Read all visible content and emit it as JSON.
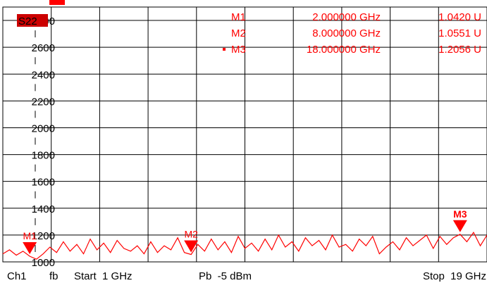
{
  "trace_label": "S22",
  "colors": {
    "trace": "#ff0000",
    "grid": "#000000",
    "text": "#000000",
    "background": "#ffffff"
  },
  "markers": [
    {
      "name": "M1",
      "freq": "2.000000 GHz",
      "value": "1.0420 U",
      "active": false
    },
    {
      "name": "M2",
      "freq": "8.000000 GHz",
      "value": "1.0551 U",
      "active": false
    },
    {
      "name": "M3",
      "freq": "18.000000 GHz",
      "value": "1.2056 U",
      "active": true
    }
  ],
  "status_bar": {
    "channel": "Ch1",
    "mode": "fb",
    "start": "Start  1 GHz",
    "power": "Pb  -5 dBm",
    "stop": "Stop  19 GHz"
  },
  "chart_data": {
    "type": "line",
    "ylim": [
      1000,
      2900
    ],
    "xlim": [
      1,
      19
    ],
    "y_ticks": [
      1000,
      1200,
      1400,
      1600,
      1800,
      2000,
      2200,
      2400,
      2600,
      2800
    ],
    "y_tick_labels": [
      "1000",
      "1200",
      "1400",
      "1600",
      "1800",
      "2000",
      "2200",
      "2400",
      "2600",
      "2800"
    ],
    "grid": true,
    "series": [
      {
        "x": [
          1,
          1.25,
          1.5,
          1.75,
          2,
          2.25,
          2.5,
          2.75,
          3,
          3.25,
          3.5,
          3.75,
          4,
          4.25,
          4.5,
          4.75,
          5,
          5.25,
          5.5,
          5.75,
          6,
          6.25,
          6.5,
          6.75,
          7,
          7.25,
          7.5,
          7.75,
          8,
          8.25,
          8.5,
          8.75,
          9,
          9.25,
          9.5,
          9.75,
          10,
          10.25,
          10.5,
          10.75,
          11,
          11.25,
          11.5,
          11.75,
          12,
          12.25,
          12.5,
          12.75,
          13,
          13.25,
          13.5,
          13.75,
          14,
          14.25,
          14.5,
          14.75,
          15,
          15.25,
          15.5,
          15.75,
          16,
          16.25,
          16.5,
          16.75,
          17,
          17.25,
          17.5,
          17.75,
          18,
          18.25,
          18.5,
          18.75,
          19
        ],
        "y": [
          1060,
          1090,
          1050,
          1080,
          1042,
          1020,
          1060,
          1110,
          1070,
          1150,
          1080,
          1130,
          1060,
          1170,
          1090,
          1140,
          1070,
          1160,
          1100,
          1080,
          1120,
          1060,
          1150,
          1070,
          1120,
          1090,
          1180,
          1070,
          1055,
          1130,
          1080,
          1170,
          1090,
          1150,
          1070,
          1190,
          1100,
          1140,
          1080,
          1170,
          1090,
          1200,
          1110,
          1150,
          1080,
          1180,
          1120,
          1160,
          1090,
          1200,
          1110,
          1130,
          1080,
          1170,
          1120,
          1190,
          1060,
          1110,
          1150,
          1090,
          1180,
          1120,
          1160,
          1200,
          1100,
          1190,
          1130,
          1180,
          1206,
          1150,
          1220,
          1120,
          1200
        ]
      }
    ],
    "marker_points": [
      {
        "x": 2,
        "y": 1042
      },
      {
        "x": 8,
        "y": 1055
      },
      {
        "x": 18,
        "y": 1206
      }
    ]
  }
}
